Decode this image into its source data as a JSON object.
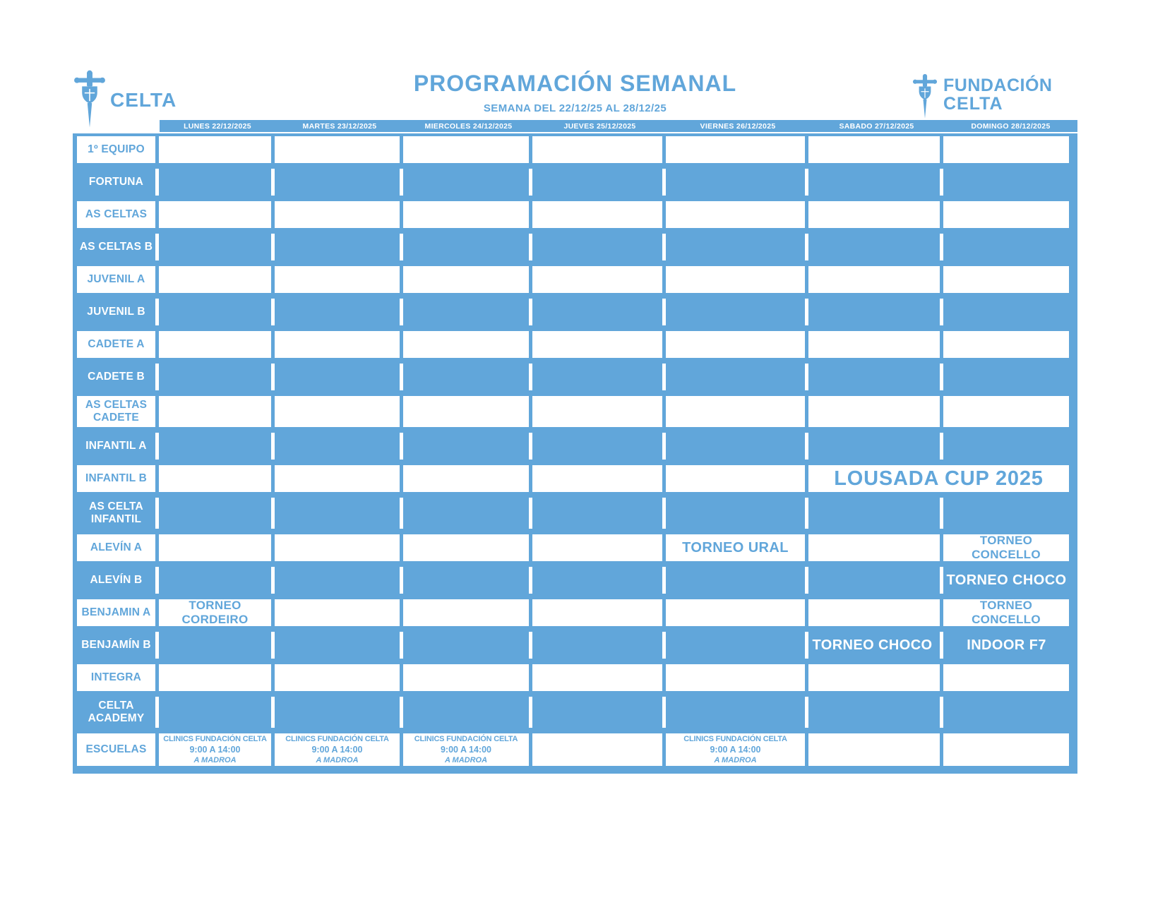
{
  "colors": {
    "accent": "#61A6DA",
    "paper": "#FFFFFF"
  },
  "logo_left": {
    "club_name": "CELTA"
  },
  "logo_right": {
    "line1": "FUNDACIÓN",
    "line2": "CELTA"
  },
  "title": "PROGRAMACIÓN SEMANAL",
  "subtitle": "SEMANA DEL 22/12/25 AL 28/12/25",
  "schedule": {
    "days": [
      "LUNES 22/12/2025",
      "MARTES 23/12/2025",
      "MIERCOLES 24/12/2025",
      "JUEVES 25/12/2025",
      "VIERNES 26/12/2025",
      "SABADO 27/12/2025",
      "DOMINGO 28/12/2025"
    ],
    "teams": [
      {
        "label": "1º EQUIPO",
        "events": []
      },
      {
        "label": "FORTUNA",
        "events": []
      },
      {
        "label": "AS CELTAS",
        "events": []
      },
      {
        "label": "AS CELTAS B",
        "events": []
      },
      {
        "label": "JUVENIL A",
        "events": []
      },
      {
        "label": "JUVENIL B",
        "events": []
      },
      {
        "label": "CADETE A",
        "events": []
      },
      {
        "label": "CADETE B",
        "events": []
      },
      {
        "label": "AS CELTAS CADETE",
        "label_lines": [
          "AS CELTAS",
          "CADETE"
        ],
        "events": []
      },
      {
        "label": "INFANTIL A",
        "events": []
      },
      {
        "label": "INFANTIL B",
        "events": [
          {
            "day": 5,
            "span": 2,
            "size": "xl",
            "lines": [
              "LOUSADA CUP 2025"
            ]
          }
        ]
      },
      {
        "label": "AS CELTA INFANTIL",
        "label_lines": [
          "AS CELTA",
          "INFANTIL"
        ],
        "events": []
      },
      {
        "label": "ALEVÍN A",
        "events": [
          {
            "day": 4,
            "span": 1,
            "size": "lg",
            "lines": [
              "TORNEO URAL"
            ]
          },
          {
            "day": 6,
            "span": 1,
            "size": "md",
            "lines": [
              "TORNEO",
              "CONCELLO"
            ]
          }
        ]
      },
      {
        "label": "ALEVÍN B",
        "events": [
          {
            "day": 6,
            "span": 1,
            "size": "lg",
            "lines": [
              "TORNEO CHOCO"
            ]
          }
        ]
      },
      {
        "label": "BENJAMIN A",
        "events": [
          {
            "day": 0,
            "span": 1,
            "size": "md",
            "lines": [
              "TORNEO",
              "CORDEIRO"
            ]
          },
          {
            "day": 6,
            "span": 1,
            "size": "md",
            "lines": [
              "TORNEO",
              "CONCELLO"
            ]
          }
        ]
      },
      {
        "label": "BENJAMÍN B",
        "events": [
          {
            "day": 5,
            "span": 1,
            "size": "lg",
            "lines": [
              "TORNEO CHOCO"
            ]
          },
          {
            "day": 6,
            "span": 1,
            "size": "lg",
            "lines": [
              "INDOOR F7"
            ]
          }
        ]
      },
      {
        "label": "INTEGRA",
        "events": []
      },
      {
        "label": "CELTA ACADEMY",
        "label_lines": [
          "CELTA",
          "ACADEMY"
        ],
        "events": []
      },
      {
        "label": "ESCUELAS",
        "events": [
          {
            "day": 0,
            "span": 1,
            "type": "clinic",
            "lines": [
              "CLINICS FUNDACIÓN CELTA",
              "9:00 A 14:00",
              "A MADROA"
            ]
          },
          {
            "day": 1,
            "span": 1,
            "type": "clinic",
            "lines": [
              "CLINICS FUNDACIÓN CELTA",
              "9:00 A 14:00",
              "A MADROA"
            ]
          },
          {
            "day": 2,
            "span": 1,
            "type": "clinic",
            "lines": [
              "CLINICS FUNDACIÓN CELTA",
              "9:00 A 14:00",
              "A MADROA"
            ]
          },
          {
            "day": 4,
            "span": 1,
            "type": "clinic",
            "lines": [
              "CLINICS FUNDACIÓN CELTA",
              "9:00 A 14:00",
              "A MADROA"
            ]
          }
        ]
      }
    ]
  }
}
